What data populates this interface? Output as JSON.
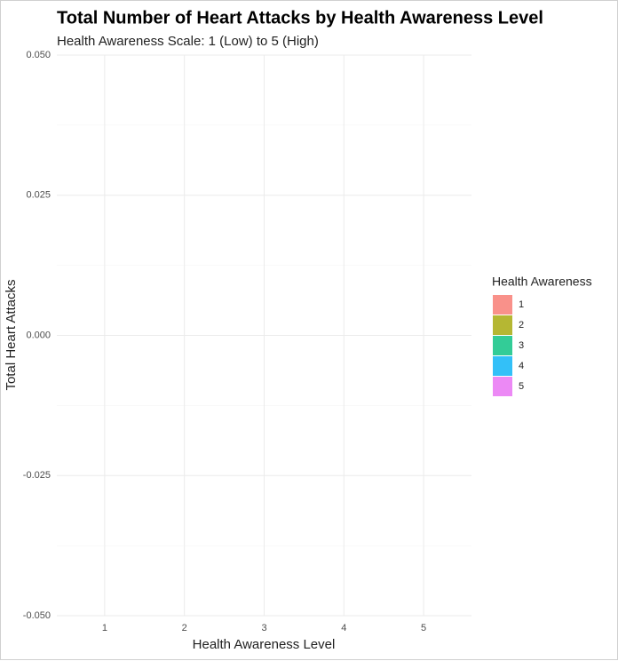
{
  "chart_data": {
    "type": "bar",
    "title": "Total Number of Heart Attacks by Health Awareness Level",
    "subtitle": "Health Awareness Scale: 1 (Low) to 5 (High)",
    "x_label": "Health Awareness Level",
    "y_label": "Total Heart Attacks",
    "legend_title": "Health Awareness",
    "legend_position": "right",
    "categories": [
      "1",
      "2",
      "3",
      "4",
      "5"
    ],
    "values": [
      0,
      0,
      0,
      0,
      0
    ],
    "colors": [
      "#F8766D",
      "#A3A500",
      "#00BF7D",
      "#00B0F6",
      "#E76BF3"
    ],
    "ylim": [
      -0.05,
      0.05
    ],
    "yticks": [
      {
        "value": -0.05,
        "label": "-0.050"
      },
      {
        "value": -0.025,
        "label": "-0.025"
      },
      {
        "value": 0,
        "label": "0.000"
      },
      {
        "value": 0.025,
        "label": "0.025"
      },
      {
        "value": 0.05,
        "label": "0.050"
      }
    ],
    "grid": true
  }
}
